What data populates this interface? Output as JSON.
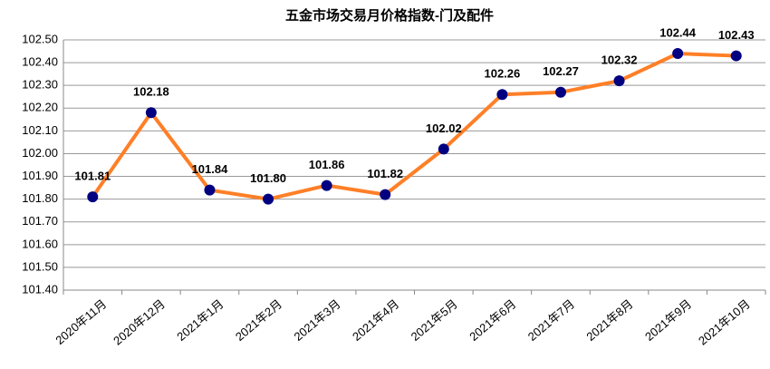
{
  "chart_data": {
    "type": "line",
    "title": "五金市场交易月价格指数-门及配件",
    "categories": [
      "2020年11月",
      "2020年12月",
      "2021年1月",
      "2021年2月",
      "2021年3月",
      "2021年4月",
      "2021年5月",
      "2021年6月",
      "2021年7月",
      "2021年8月",
      "2021年9月",
      "2021年10月"
    ],
    "series": [
      {
        "name": "门及配件",
        "color": "#ff7f27",
        "marker_color": "#000080",
        "values": [
          101.81,
          102.18,
          101.84,
          101.8,
          101.86,
          101.82,
          102.02,
          102.26,
          102.27,
          102.32,
          102.44,
          102.43
        ],
        "value_labels": [
          "101.81",
          "102.18",
          "101.84",
          "101.80",
          "101.86",
          "101.82",
          "102.02",
          "102.26",
          "102.27",
          "102.32",
          "102.44",
          "102.43"
        ]
      }
    ],
    "ylim": [
      101.4,
      102.5
    ],
    "yticks": [
      {
        "value": 101.4,
        "label": "101.40"
      },
      {
        "value": 101.5,
        "label": "101.50"
      },
      {
        "value": 101.6,
        "label": "101.60"
      },
      {
        "value": 101.7,
        "label": "101.70"
      },
      {
        "value": 101.8,
        "label": "101.80"
      },
      {
        "value": 101.9,
        "label": "101.90"
      },
      {
        "value": 102.0,
        "label": "102.00"
      },
      {
        "value": 102.1,
        "label": "102.10"
      },
      {
        "value": 102.2,
        "label": "102.20"
      },
      {
        "value": 102.3,
        "label": "102.30"
      },
      {
        "value": 102.4,
        "label": "102.40"
      },
      {
        "value": 102.5,
        "label": "102.50"
      }
    ],
    "grid": true
  }
}
